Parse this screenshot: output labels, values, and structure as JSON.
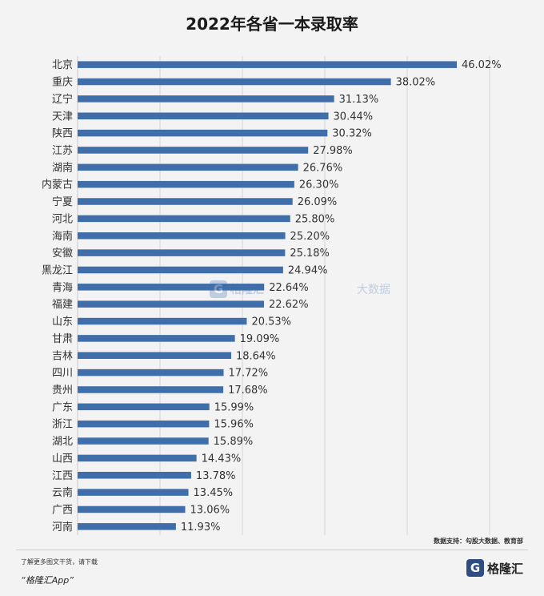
{
  "chart_data": {
    "type": "bar",
    "orientation": "horizontal",
    "title": "2022年各省一本录取率",
    "categories": [
      "北京",
      "重庆",
      "辽宁",
      "天津",
      "陕西",
      "江苏",
      "湖南",
      "内蒙古",
      "宁夏",
      "河北",
      "海南",
      "安徽",
      "黑龙江",
      "青海",
      "福建",
      "山东",
      "甘肃",
      "吉林",
      "四川",
      "贵州",
      "广东",
      "浙江",
      "湖北",
      "山西",
      "江西",
      "云南",
      "广西",
      "河南"
    ],
    "values": [
      46.02,
      38.02,
      31.13,
      30.44,
      30.32,
      27.98,
      26.76,
      26.3,
      26.09,
      25.8,
      25.2,
      25.18,
      24.94,
      22.64,
      22.62,
      20.53,
      19.09,
      18.64,
      17.72,
      17.68,
      15.99,
      15.96,
      15.89,
      14.43,
      13.78,
      13.45,
      13.06,
      11.93
    ],
    "value_labels": [
      "46.02%",
      "38.02%",
      "31.13%",
      "30.44%",
      "30.32%",
      "27.98%",
      "26.76%",
      "26.30%",
      "26.09%",
      "25.80%",
      "25.20%",
      "25.18%",
      "24.94%",
      "22.64%",
      "22.62%",
      "20.53%",
      "19.09%",
      "18.64%",
      "17.72%",
      "17.68%",
      "15.99%",
      "15.96%",
      "15.89%",
      "14.43%",
      "13.78%",
      "13.45%",
      "13.06%",
      "11.93%"
    ],
    "xlim": [
      0,
      50
    ],
    "grid": true,
    "legend": "none",
    "bar_color": "#3f6eaa"
  },
  "watermark": {
    "mark": "G",
    "brand": "格隆汇",
    "suffix": "大数据"
  },
  "source_note": "数据支持：勾股大数据、教育部",
  "footer": {
    "note": "了解更多图文干货，请下载",
    "app": "“格隆汇App”"
  },
  "logo": {
    "mark": "G",
    "brand": "格隆汇"
  }
}
